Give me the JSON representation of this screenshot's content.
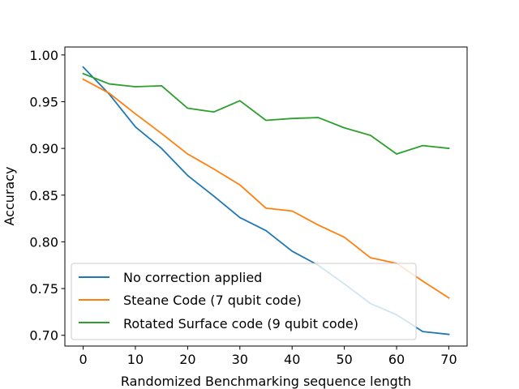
{
  "chart_data": {
    "type": "line",
    "title": "",
    "xlabel": "Randomized Benchmarking sequence length",
    "ylabel": "Accuracy",
    "xlim": [
      -3.5,
      73.5
    ],
    "ylim": [
      0.6885,
      1.0085
    ],
    "xticks": [
      0,
      10,
      20,
      30,
      40,
      50,
      60,
      70
    ],
    "xtick_labels": [
      "0",
      "10",
      "20",
      "30",
      "40",
      "50",
      "60",
      "70"
    ],
    "yticks": [
      0.7,
      0.75,
      0.8,
      0.85,
      0.9,
      0.95,
      1.0
    ],
    "ytick_labels": [
      "0.70",
      "0.75",
      "0.80",
      "0.85",
      "0.90",
      "0.95",
      "1.00"
    ],
    "grid": false,
    "legend_position": "lower-left",
    "x": [
      0,
      5,
      10,
      15,
      20,
      25,
      30,
      35,
      40,
      45,
      50,
      55,
      60,
      65,
      70
    ],
    "series": [
      {
        "name": "No correction applied",
        "color": "#1f77b4",
        "values": [
          0.987,
          0.958,
          0.923,
          0.9,
          0.871,
          0.849,
          0.826,
          0.812,
          0.79,
          0.775,
          0.755,
          0.734,
          0.722,
          0.704,
          0.701
        ]
      },
      {
        "name": "Steane Code (7 qubit code)",
        "color": "#ff7f0e",
        "values": [
          0.974,
          0.959,
          0.937,
          0.916,
          0.894,
          0.878,
          0.861,
          0.836,
          0.833,
          0.818,
          0.805,
          0.783,
          0.777,
          0.758,
          0.74
        ]
      },
      {
        "name": "Rotated Surface code (9 qubit code)",
        "color": "#2ca02c",
        "values": [
          0.98,
          0.969,
          0.966,
          0.967,
          0.943,
          0.939,
          0.951,
          0.93,
          0.932,
          0.933,
          0.922,
          0.914,
          0.894,
          0.903,
          0.9
        ]
      }
    ]
  }
}
